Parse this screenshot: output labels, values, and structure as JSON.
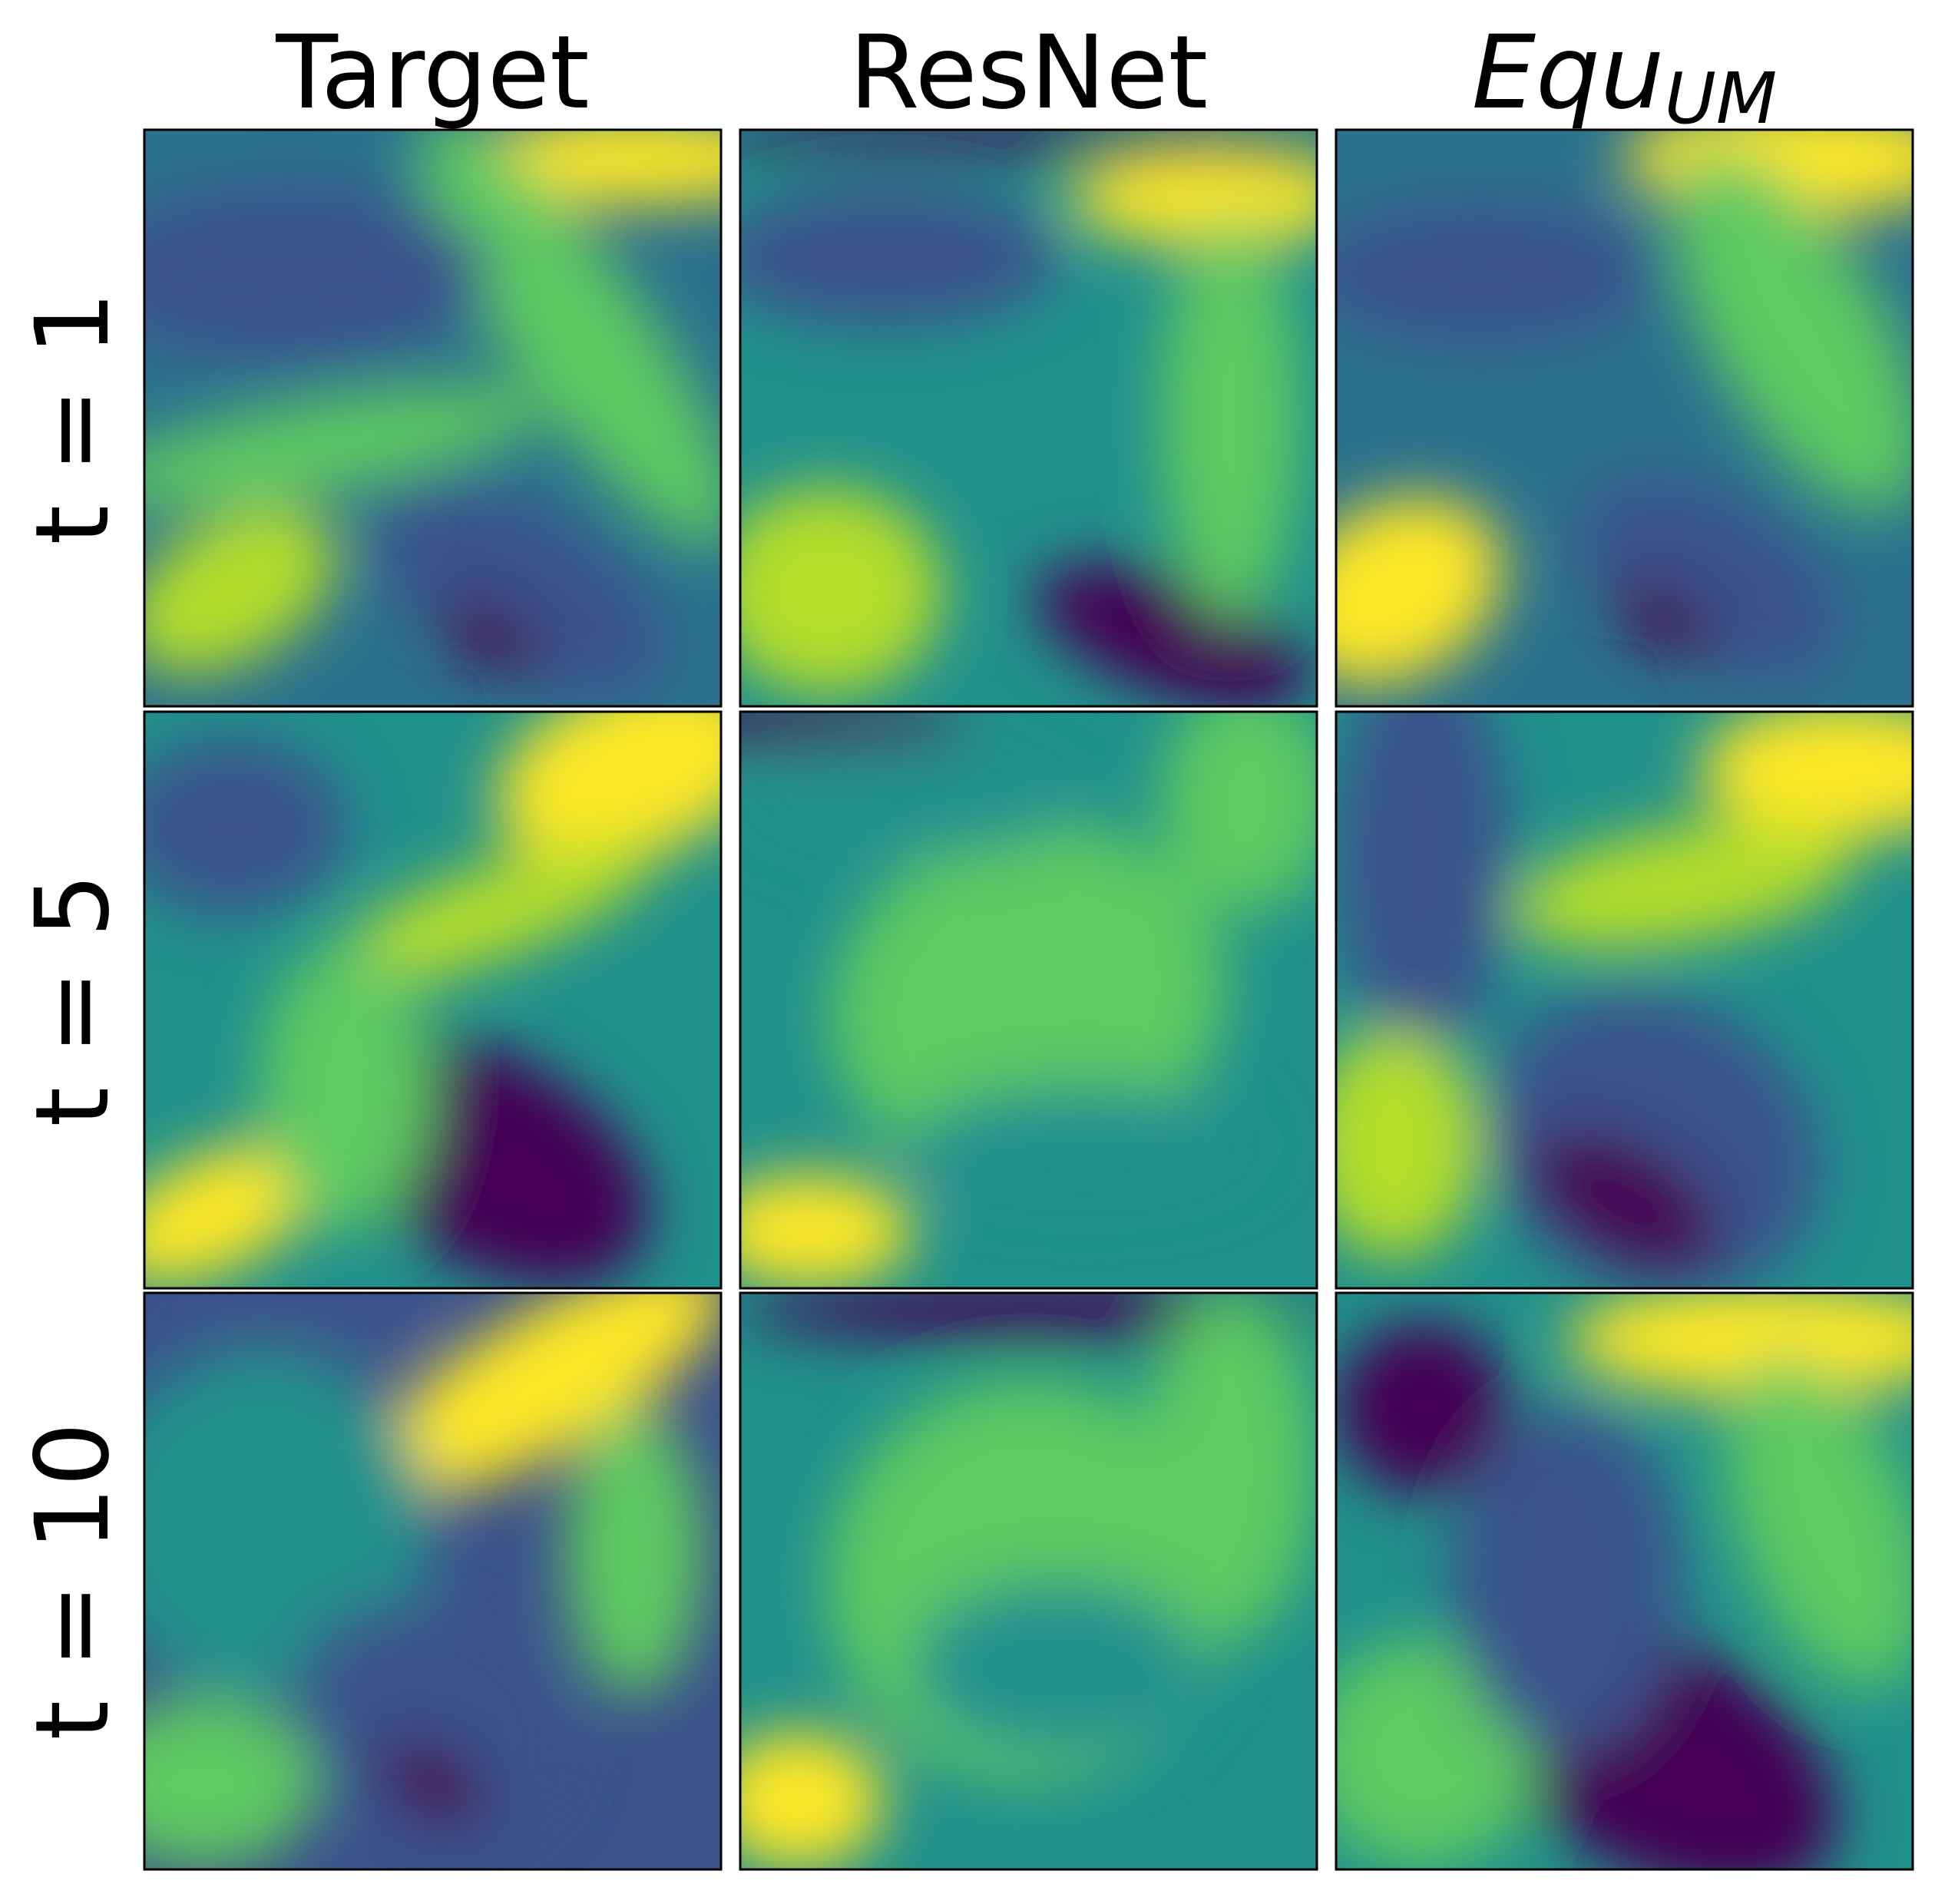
{
  "columns": [
    {
      "title": "Target"
    },
    {
      "title": "ResNet"
    },
    {
      "title": "Equ",
      "subscript": "UM"
    }
  ],
  "rows": [
    {
      "label": "t = 1"
    },
    {
      "label": "t = 5"
    },
    {
      "label": "t = 10"
    }
  ]
}
